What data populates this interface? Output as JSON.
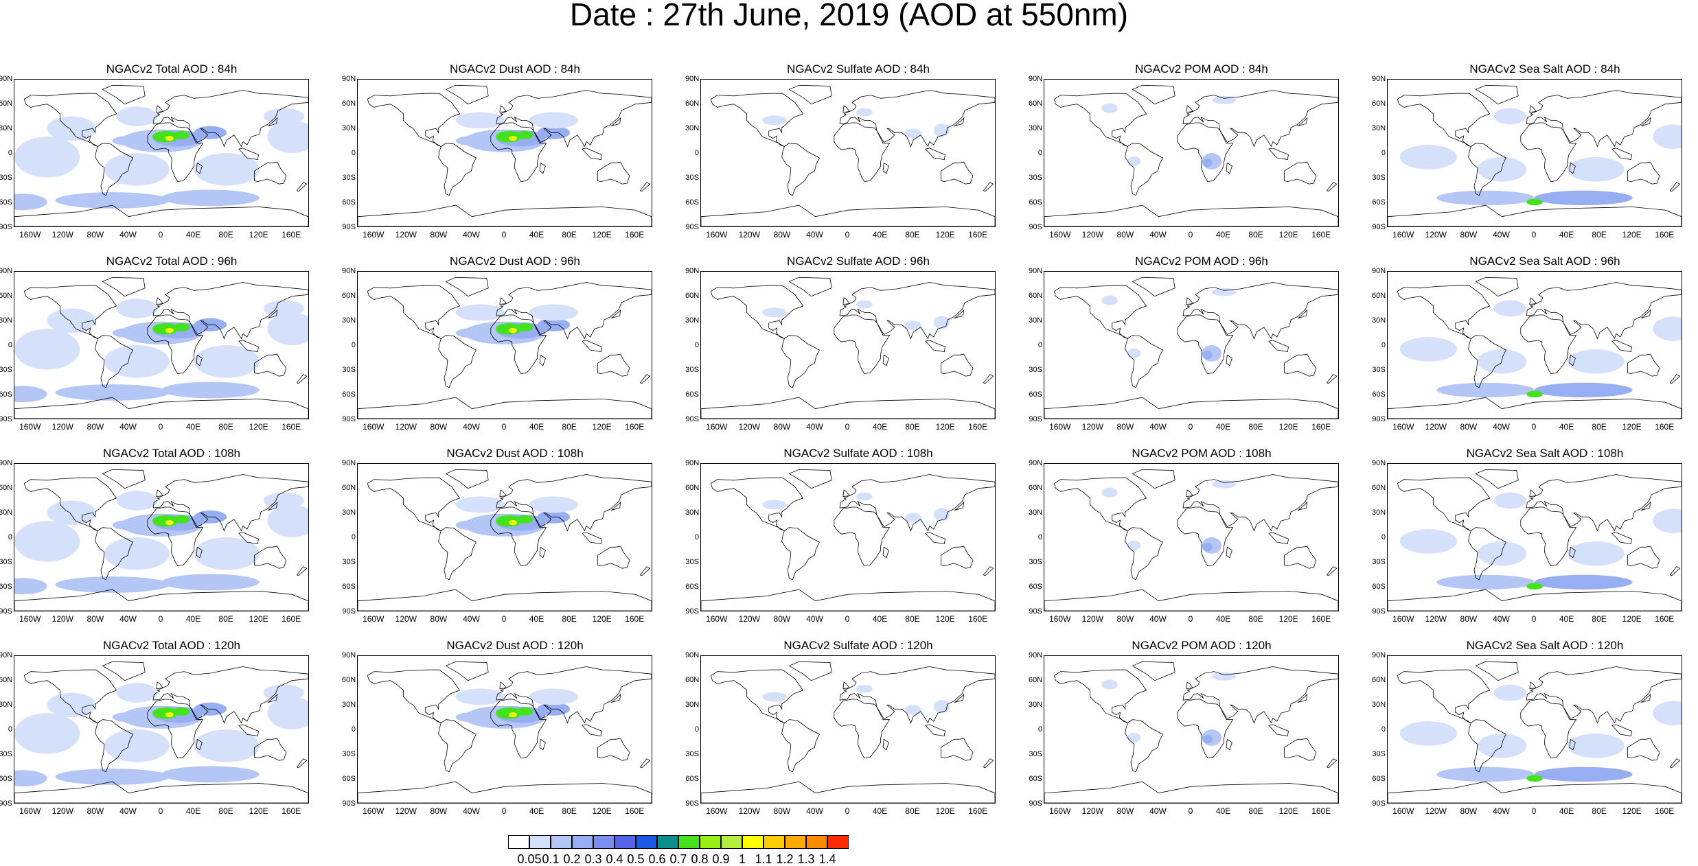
{
  "title": "Date : 27th June, 2019 (AOD at 550nm)",
  "lat_ticks": [
    "90N",
    "60N",
    "30N",
    "0",
    "30S",
    "60S",
    "90S"
  ],
  "lon_ticks": [
    "160W",
    "120W",
    "80W",
    "40W",
    "0",
    "40E",
    "80E",
    "120E",
    "160E"
  ],
  "forecast_hours": [
    "84h",
    "96h",
    "108h",
    "120h"
  ],
  "species": [
    "Total",
    "Dust",
    "Sulfate",
    "POM",
    "Sea Salt"
  ],
  "panels": [
    [
      "NGACv2 Total AOD : 84h",
      "NGACv2 Dust AOD : 84h",
      "NGACv2 Sulfate AOD : 84h",
      "NGACv2 POM AOD : 84h",
      "NGACv2 Sea Salt AOD : 84h"
    ],
    [
      "NGACv2 Total AOD : 96h",
      "NGACv2 Dust AOD : 96h",
      "NGACv2 Sulfate AOD : 96h",
      "NGACv2 POM AOD : 96h",
      "NGACv2 Sea Salt AOD : 96h"
    ],
    [
      "NGACv2 Total AOD : 108h",
      "NGACv2 Dust AOD : 108h",
      "NGACv2 Sulfate AOD : 108h",
      "NGACv2 POM AOD : 108h",
      "NGACv2 Sea Salt AOD : 108h"
    ],
    [
      "NGACv2 Total AOD : 120h",
      "NGACv2 Dust AOD : 120h",
      "NGACv2 Sulfate AOD : 120h",
      "NGACv2 POM AOD : 120h",
      "NGACv2 Sea Salt  AOD : 120h"
    ]
  ],
  "colorbar": {
    "labels": [
      "0.05",
      "0.1",
      "0.2",
      "0.3",
      "0.4",
      "0.5",
      "0.6",
      "0.7",
      "0.8",
      "0.9",
      "1",
      "1.1",
      "1.2",
      "1.3",
      "1.4"
    ],
    "colors": [
      "#ffffff",
      "#d5e0fb",
      "#b4c6f6",
      "#97aef2",
      "#7b8ff0",
      "#5565e8",
      "#1a5ae6",
      "#0c8e8e",
      "#44e21c",
      "#98ef14",
      "#b5ee3c",
      "#ffff00",
      "#ffcc00",
      "#ffaa00",
      "#ff8a00",
      "#ff2a00"
    ]
  },
  "colors": {
    "ocean_low": "#d5e0fb",
    "ocean_mid": "#b4c6f6",
    "dust_high": "#44e21c",
    "dust_core": "#ffff00",
    "coast": "#000000"
  }
}
